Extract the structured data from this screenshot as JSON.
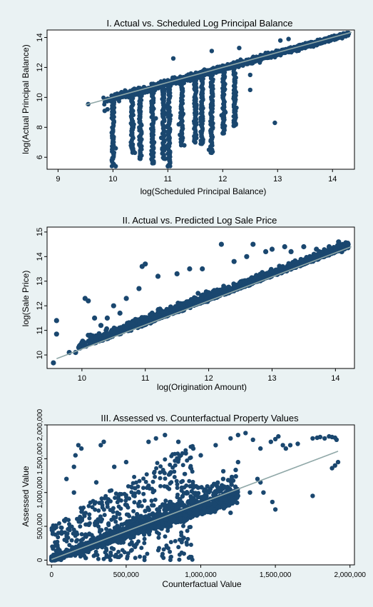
{
  "figure": {
    "background": "#eaf2f3",
    "plot_background": "#ffffff",
    "marker_color": "#1a476f",
    "fit_line_color": "#90a8a8"
  },
  "chart_data": [
    {
      "type": "scatter",
      "title": "I. Actual vs. Scheduled Log Principal Balance",
      "xlabel": "log(Scheduled Principal Balance)",
      "ylabel": "log(Actual Principal Balance)",
      "xlim": [
        8.8,
        14.4
      ],
      "ylim": [
        5.2,
        14.5
      ],
      "xticks": [
        9,
        10,
        11,
        12,
        13,
        14
      ],
      "xtick_labels": [
        "9",
        "10",
        "11",
        "12",
        "13",
        "14"
      ],
      "yticks": [
        6,
        8,
        10,
        12,
        14
      ],
      "ytick_labels": [
        "6",
        "8",
        "10",
        "12",
        "14"
      ],
      "grid": false,
      "fit_line": [
        [
          9.5,
          9.5
        ],
        [
          14.35,
          14.35
        ]
      ],
      "points": [
        [
          9.55,
          9.55
        ],
        [
          9.9,
          9.2
        ],
        [
          9.85,
          9.1
        ],
        [
          10.0,
          8.6
        ],
        [
          10.0,
          7.8
        ],
        [
          10.05,
          6.6
        ],
        [
          10.05,
          5.4
        ],
        [
          10.02,
          9.0
        ],
        [
          10.35,
          6.8
        ],
        [
          10.35,
          7.5
        ],
        [
          10.4,
          6.3
        ],
        [
          10.38,
          8.2
        ],
        [
          10.5,
          6.3
        ],
        [
          10.5,
          5.9
        ],
        [
          10.52,
          7.2
        ],
        [
          10.7,
          6.2
        ],
        [
          10.72,
          5.6
        ],
        [
          10.75,
          7.0
        ],
        [
          10.78,
          8.6
        ],
        [
          10.88,
          7.3
        ],
        [
          10.9,
          6.6
        ],
        [
          10.95,
          5.9
        ],
        [
          10.92,
          8.1
        ],
        [
          11.0,
          7.7
        ],
        [
          11.0,
          5.4
        ],
        [
          11.02,
          6.8
        ],
        [
          11.05,
          8.8
        ],
        [
          11.2,
          8.2
        ],
        [
          11.22,
          7.5
        ],
        [
          11.3,
          6.8
        ],
        [
          11.28,
          8.9
        ],
        [
          11.48,
          7.4
        ],
        [
          11.5,
          7.0
        ],
        [
          11.52,
          8.3
        ],
        [
          11.6,
          8.4
        ],
        [
          11.62,
          6.9
        ],
        [
          11.6,
          7.7
        ],
        [
          11.75,
          6.5
        ],
        [
          11.8,
          6.3
        ],
        [
          11.78,
          8.2
        ],
        [
          11.98,
          8.8
        ],
        [
          12.0,
          8.0
        ],
        [
          12.0,
          7.6
        ],
        [
          12.05,
          9.0
        ],
        [
          12.2,
          8.1
        ],
        [
          12.25,
          9.3
        ],
        [
          12.5,
          11.5
        ],
        [
          12.5,
          10.5
        ],
        [
          12.95,
          8.3
        ],
        [
          11.1,
          12.6
        ],
        [
          11.8,
          13.1
        ],
        [
          12.3,
          13.3
        ],
        [
          13.05,
          13.8
        ],
        [
          13.2,
          13.9
        ],
        [
          10.0,
          9.45
        ]
      ]
    },
    {
      "type": "scatter",
      "title": "II. Actual vs. Predicted Log Sale Price",
      "xlabel": "log(Origination Amount)",
      "ylabel": "log(Sale Price)",
      "xlim": [
        9.45,
        14.3
      ],
      "ylim": [
        9.45,
        15.2
      ],
      "xticks": [
        10,
        11,
        12,
        13,
        14
      ],
      "xtick_labels": [
        "10",
        "11",
        "12",
        "13",
        "14"
      ],
      "yticks": [
        10,
        11,
        12,
        13,
        14,
        15
      ],
      "ytick_labels": [
        "10",
        "11",
        "12",
        "13",
        "14",
        "15"
      ],
      "grid": false,
      "fit_line": [
        [
          9.6,
          9.85
        ],
        [
          14.25,
          14.4
        ]
      ],
      "points": [
        [
          9.55,
          9.68
        ],
        [
          9.6,
          11.4
        ],
        [
          9.6,
          10.85
        ],
        [
          9.8,
          10.1
        ],
        [
          9.9,
          10.1
        ],
        [
          9.95,
          10.3
        ],
        [
          10.0,
          10.5
        ],
        [
          10.05,
          12.3
        ],
        [
          10.1,
          12.2
        ],
        [
          10.2,
          11.5
        ],
        [
          10.3,
          11.2
        ],
        [
          10.4,
          11.5
        ],
        [
          10.5,
          12.0
        ],
        [
          10.6,
          11.7
        ],
        [
          10.7,
          12.3
        ],
        [
          10.9,
          12.7
        ],
        [
          10.95,
          13.6
        ],
        [
          11.0,
          13.7
        ],
        [
          11.2,
          13.2
        ],
        [
          11.5,
          13.3
        ],
        [
          11.7,
          13.5
        ],
        [
          11.9,
          13.5
        ],
        [
          12.2,
          14.5
        ],
        [
          12.4,
          13.8
        ],
        [
          12.6,
          14.0
        ],
        [
          12.7,
          14.5
        ],
        [
          12.9,
          14.2
        ],
        [
          13.0,
          14.3
        ],
        [
          13.2,
          14.4
        ],
        [
          13.3,
          14.2
        ],
        [
          13.5,
          14.4
        ],
        [
          13.7,
          14.3
        ],
        [
          13.9,
          14.4
        ],
        [
          14.05,
          14.6
        ],
        [
          14.2,
          14.5
        ],
        [
          14.1,
          14.2
        ]
      ]
    },
    {
      "type": "scatter",
      "title": "III. Assessed vs. Counterfactual Property Values",
      "xlabel": "Counterfactual Value",
      "ylabel": "Assessed Value",
      "xlim": [
        -30000,
        2030000
      ],
      "ylim": [
        -70000,
        2000000
      ],
      "xticks": [
        0,
        500000,
        1000000,
        1500000,
        2000000
      ],
      "xtick_labels": [
        "0",
        "500,000",
        "1,000,000",
        "1,500,000",
        "2,000,000"
      ],
      "yticks": [
        0,
        500000,
        1000000,
        1500000,
        2000000
      ],
      "ytick_labels": [
        "0",
        "500,000",
        "1,000,000",
        "1,500,000",
        "2,000,000"
      ],
      "grid": false,
      "fit_line": [
        [
          0,
          10000
        ],
        [
          1920000,
          1610000
        ]
      ],
      "points": [
        [
          150000,
          1380000
        ],
        [
          160000,
          1550000
        ],
        [
          180000,
          1700000
        ],
        [
          200000,
          1650000
        ],
        [
          330000,
          1700000
        ],
        [
          350000,
          1750000
        ],
        [
          420000,
          1380000
        ],
        [
          500000,
          1450000
        ],
        [
          650000,
          1750000
        ],
        [
          700000,
          1800000
        ],
        [
          760000,
          1850000
        ],
        [
          850000,
          1750000
        ],
        [
          900000,
          1580000
        ],
        [
          950000,
          1650000
        ],
        [
          1000000,
          1550000
        ],
        [
          1100000,
          1700000
        ],
        [
          1200000,
          1800000
        ],
        [
          1250000,
          1850000
        ],
        [
          1300000,
          1880000
        ],
        [
          1350000,
          1780000
        ],
        [
          1150000,
          1200000
        ],
        [
          1250000,
          1450000
        ],
        [
          1400000,
          1650000
        ],
        [
          1470000,
          1750000
        ],
        [
          1500000,
          1790000
        ],
        [
          1520000,
          1830000
        ],
        [
          1550000,
          1700000
        ],
        [
          1380000,
          1200000
        ],
        [
          1400000,
          1150000
        ],
        [
          1420000,
          1000000
        ],
        [
          1480000,
          860000
        ],
        [
          1500000,
          750000
        ],
        [
          1570000,
          1650000
        ],
        [
          1600000,
          1700000
        ],
        [
          1650000,
          1720000
        ],
        [
          1750000,
          1800000
        ],
        [
          1780000,
          1810000
        ],
        [
          1800000,
          1820000
        ],
        [
          1830000,
          1800000
        ],
        [
          1860000,
          1830000
        ],
        [
          1880000,
          1820000
        ],
        [
          1900000,
          1810000
        ],
        [
          1910000,
          1780000
        ],
        [
          1900000,
          1400000
        ],
        [
          1880000,
          1360000
        ],
        [
          1920000,
          1450000
        ],
        [
          1750000,
          950000
        ],
        [
          1330000,
          1000000
        ],
        [
          1250000,
          950000
        ],
        [
          1200000,
          700000
        ],
        [
          1150000,
          800000
        ],
        [
          1080000,
          900000
        ],
        [
          800000,
          1300000
        ],
        [
          650000,
          1100000
        ],
        [
          450000,
          900000
        ],
        [
          300000,
          1150000
        ],
        [
          100000,
          1200000
        ],
        [
          150000,
          1000000
        ]
      ]
    }
  ]
}
